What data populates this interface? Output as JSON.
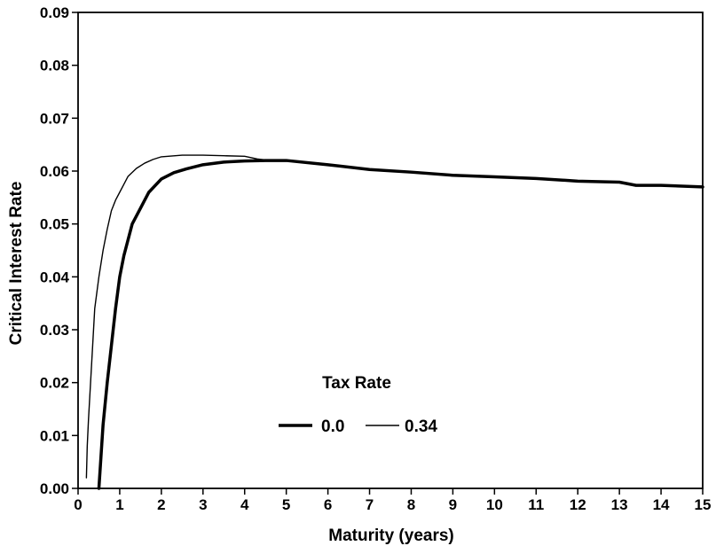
{
  "chart_data": {
    "type": "line",
    "title": "",
    "xlabel": "Maturity (years)",
    "ylabel": "Critical Interest Rate",
    "xlim": [
      0,
      15
    ],
    "ylim": [
      0,
      0.09
    ],
    "x_ticks": [
      "0",
      "1",
      "2",
      "3",
      "4",
      "5",
      "6",
      "7",
      "8",
      "9",
      "10",
      "11",
      "12",
      "13",
      "14",
      "15"
    ],
    "y_ticks": [
      "0.00",
      "0.01",
      "0.02",
      "0.03",
      "0.04",
      "0.05",
      "0.06",
      "0.07",
      "0.08",
      "0.09"
    ],
    "grid": false,
    "legend": {
      "title": "Tax Rate",
      "placement": "center-bottom",
      "entries": [
        "0.0",
        "0.34"
      ]
    },
    "series": [
      {
        "name": "0.0",
        "weight": "thick",
        "x": [
          0.5,
          0.55,
          0.6,
          0.7,
          0.8,
          0.9,
          1.0,
          1.1,
          1.2,
          1.3,
          1.5,
          1.7,
          2.0,
          2.3,
          2.6,
          3.0,
          3.5,
          4.0,
          4.5,
          5.0,
          6.0,
          7.0,
          8.0,
          9.0,
          10.0,
          11.0,
          12.0,
          13.0,
          13.4,
          14.0,
          15.0
        ],
        "values": [
          0.0,
          0.006,
          0.012,
          0.02,
          0.027,
          0.034,
          0.04,
          0.044,
          0.047,
          0.05,
          0.053,
          0.056,
          0.0585,
          0.0597,
          0.0604,
          0.0612,
          0.0617,
          0.0619,
          0.062,
          0.062,
          0.0612,
          0.0603,
          0.0598,
          0.0592,
          0.0589,
          0.0586,
          0.0581,
          0.0579,
          0.0573,
          0.0573,
          0.057
        ]
      },
      {
        "name": "0.34",
        "weight": "thin",
        "x": [
          0.2,
          0.22,
          0.25,
          0.3,
          0.35,
          0.4,
          0.5,
          0.6,
          0.7,
          0.8,
          0.9,
          1.0,
          1.1,
          1.2,
          1.4,
          1.6,
          1.8,
          2.0,
          2.5,
          3.0,
          3.5,
          4.0,
          4.3,
          4.5,
          5.0,
          6.0,
          7.0,
          8.0,
          9.0,
          10.0,
          11.0,
          12.0,
          13.0,
          13.4,
          14.0,
          15.0
        ],
        "values": [
          0.002,
          0.008,
          0.013,
          0.02,
          0.027,
          0.034,
          0.04,
          0.045,
          0.049,
          0.0525,
          0.0545,
          0.056,
          0.0575,
          0.059,
          0.0605,
          0.0615,
          0.0622,
          0.0627,
          0.063,
          0.063,
          0.0629,
          0.0628,
          0.0623,
          0.0621,
          0.062,
          0.0612,
          0.0603,
          0.0598,
          0.0592,
          0.0589,
          0.0586,
          0.0581,
          0.0579,
          0.0573,
          0.0573,
          0.057
        ]
      }
    ]
  }
}
